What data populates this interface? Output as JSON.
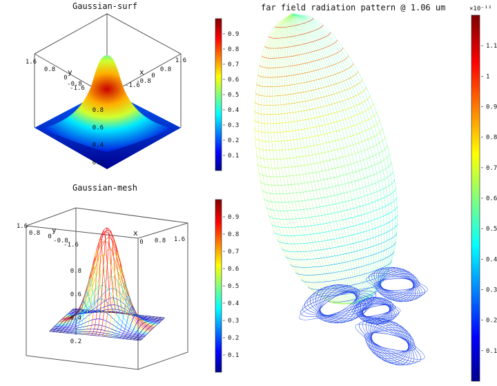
{
  "chart_data": [
    {
      "type": "surface",
      "title": "Gaussian-surf",
      "x_ticks": [
        "1.6",
        "0.8",
        "0",
        "-0.8",
        "-1.6"
      ],
      "y_ticks": [
        "-1.6",
        "-0.8",
        "0",
        "0.8",
        "1.6"
      ],
      "x_axis_label": "x",
      "y_axis_label": "y",
      "z_ticks": [
        "0.2",
        "0.4",
        "0.6",
        "0.8"
      ],
      "colorbar_ticks": [
        "0.1",
        "0.2",
        "0.3",
        "0.4",
        "0.5",
        "0.6",
        "0.7",
        "0.8",
        "0.9"
      ],
      "zlim": [
        0,
        1
      ],
      "peak": 1.0
    },
    {
      "type": "mesh",
      "title": "Gaussian-mesh",
      "x_ticks": [
        "0",
        "0.8",
        "1.6"
      ],
      "y_ticks": [
        "1.6",
        "0.8",
        "0",
        "-0.8",
        "-1.6"
      ],
      "x_axis_label": "x",
      "y_axis_label": "y",
      "z_ticks": [
        "0.2",
        "0.4",
        "0.6",
        "0.8"
      ],
      "colorbar_ticks": [
        "0.1",
        "0.2",
        "0.3",
        "0.4",
        "0.5",
        "0.6",
        "0.7",
        "0.8",
        "0.9"
      ],
      "zlim": [
        0,
        1
      ],
      "peak": 1.0
    },
    {
      "type": "mesh",
      "title": "far field radiation pattern @ 1.06 um",
      "colorbar_exponent": "×10⁻¹²",
      "colorbar_ticks": [
        "0.1",
        "0.2",
        "0.3",
        "0.4",
        "0.5",
        "0.6",
        "0.7",
        "0.8",
        "0.9",
        "1",
        "1.1"
      ],
      "clim": [
        0,
        1.2
      ]
    }
  ],
  "colormap": [
    "#00008f",
    "#0000ff",
    "#00ffff",
    "#ffff00",
    "#ff0000",
    "#800000"
  ]
}
